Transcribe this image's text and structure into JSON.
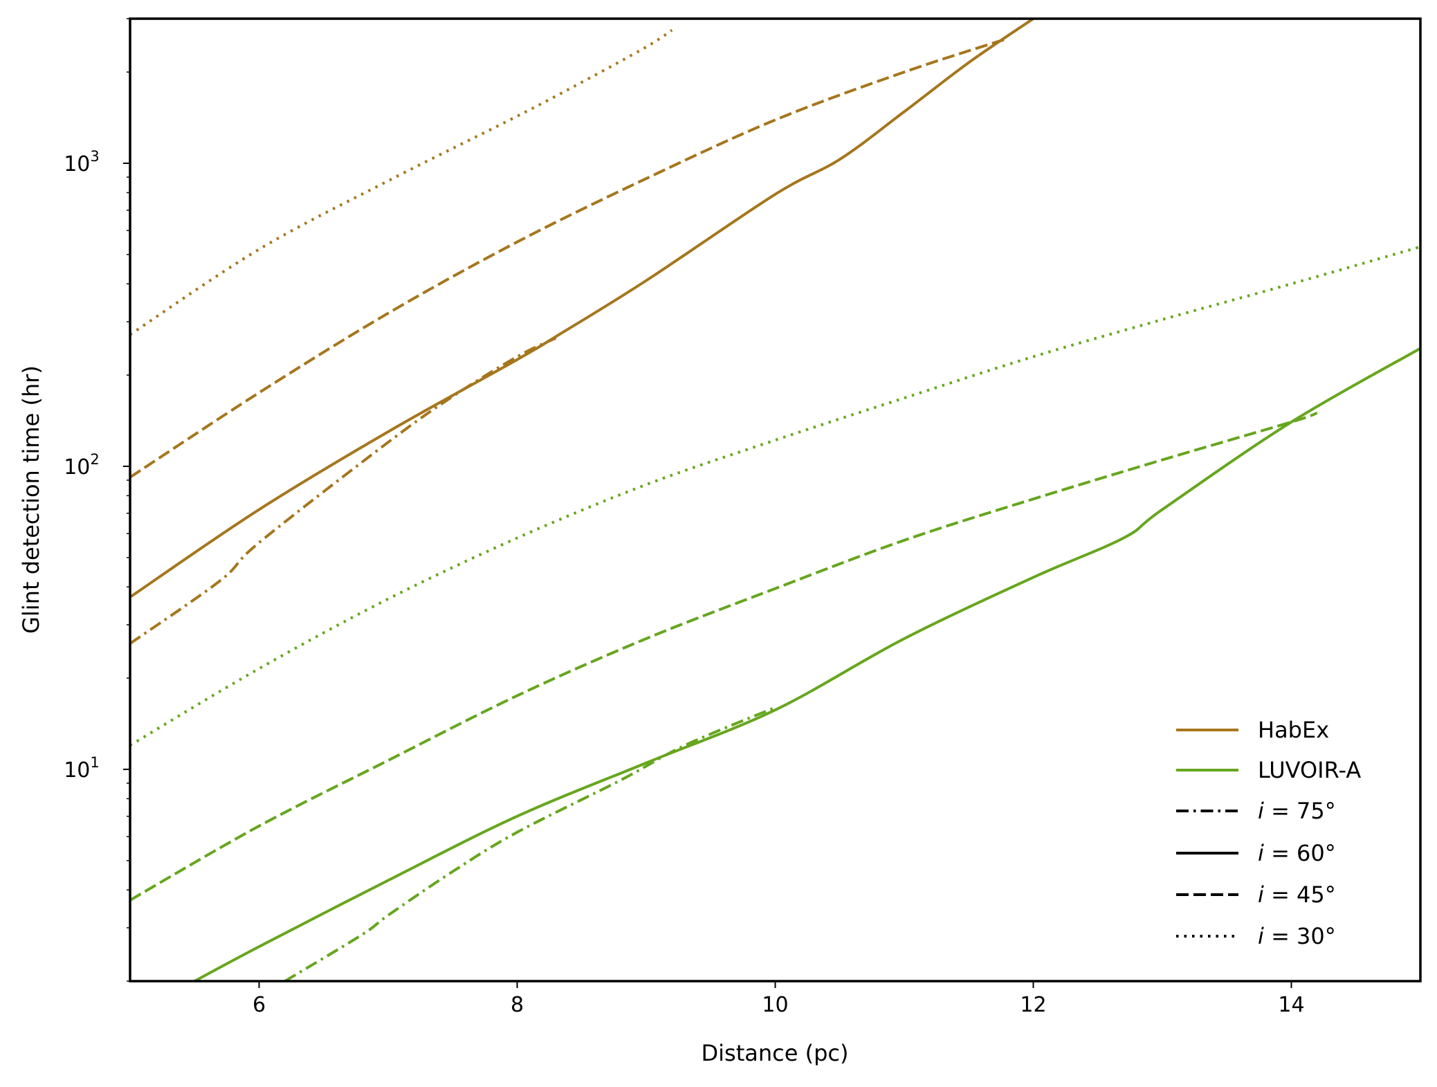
{
  "chart_data": {
    "type": "line",
    "title": "",
    "xlabel": "Distance (pc)",
    "ylabel": "Glint detection time (hr)",
    "xlim": [
      5,
      15
    ],
    "ylim": [
      2,
      3000
    ],
    "yscale": "log",
    "grid": false,
    "legend_placement": "lower-right",
    "x_ticks": [
      6,
      8,
      10,
      12,
      14
    ],
    "x_tick_labels": [
      "6",
      "8",
      "10",
      "12",
      "14"
    ],
    "y_ticks": [
      10,
      100,
      1000
    ],
    "y_tick_labels": [
      {
        "base": "10",
        "exp": "1"
      },
      {
        "base": "10",
        "exp": "2"
      },
      {
        "base": "10",
        "exp": "3"
      }
    ],
    "colors": {
      "HabEx": "#a6761d",
      "LUVOIR-A": "#66a61e"
    },
    "legend": [
      {
        "kind": "color",
        "label": "HabEx",
        "color": "#a6761d"
      },
      {
        "kind": "color",
        "label": "LUVOIR-A",
        "color": "#66a61e"
      },
      {
        "kind": "style",
        "style": "dashdot",
        "prefix": "i",
        "text": " = 75°"
      },
      {
        "kind": "style",
        "style": "solid",
        "prefix": "i",
        "text": " = 60°"
      },
      {
        "kind": "style",
        "style": "dashed",
        "prefix": "i",
        "text": " = 45°"
      },
      {
        "kind": "style",
        "style": "dotted",
        "prefix": "i",
        "text": " = 30°"
      }
    ],
    "series": [
      {
        "telescope": "HabEx",
        "inclination": 30,
        "style": "dotted",
        "x": [
          5.0,
          6.0,
          7.0,
          8.0,
          8.5,
          9.0,
          9.2
        ],
        "y": [
          272,
          520,
          875,
          1430,
          1850,
          2420,
          2750
        ]
      },
      {
        "telescope": "HabEx",
        "inclination": 45,
        "style": "dashed",
        "x": [
          5.0,
          6.0,
          7.0,
          8.0,
          9.0,
          10.0,
          11.0,
          11.8
        ],
        "y": [
          92,
          175,
          320,
          550,
          890,
          1390,
          2000,
          2580
        ]
      },
      {
        "telescope": "HabEx",
        "inclination": 60,
        "style": "solid",
        "x": [
          5.0,
          6.0,
          7.0,
          8.0,
          8.3,
          9.0,
          10.0,
          10.5,
          11.0,
          11.5,
          12.0
        ],
        "y": [
          37,
          72,
          130,
          225,
          268,
          410,
          790,
          1030,
          1480,
          2150,
          3000
        ]
      },
      {
        "telescope": "HabEx",
        "inclination": 75,
        "style": "dashdot",
        "x": [
          5.0,
          5.7,
          6.0,
          7.0,
          7.5,
          8.0,
          8.3
        ],
        "y": [
          26,
          42,
          56,
          120,
          170,
          230,
          265
        ]
      },
      {
        "telescope": "LUVOIR-A",
        "inclination": 30,
        "style": "dotted",
        "x": [
          5.0,
          6.0,
          7.0,
          8.0,
          9.0,
          10.0,
          11.0,
          12.0,
          13.0,
          14.0,
          15.0
        ],
        "y": [
          12,
          21.5,
          36.5,
          58,
          87,
          122,
          168,
          230,
          305,
          400,
          530
        ]
      },
      {
        "telescope": "LUVOIR-A",
        "inclination": 45,
        "style": "dashed",
        "x": [
          5.0,
          6.0,
          7.0,
          8.0,
          9.0,
          10.0,
          11.0,
          12.0,
          13.0,
          14.0,
          14.2
        ],
        "y": [
          3.7,
          6.5,
          10.7,
          17.5,
          27,
          39.5,
          57,
          78,
          105,
          140,
          150
        ]
      },
      {
        "telescope": "LUVOIR-A",
        "inclination": 60,
        "style": "solid",
        "x": [
          5.5,
          6.0,
          7.0,
          8.0,
          9.0,
          10.0,
          11.0,
          12.0,
          12.7,
          13.0,
          14.0,
          15.0
        ],
        "y": [
          2.0,
          2.6,
          4.3,
          7.0,
          10.5,
          15.7,
          27,
          43,
          58,
          72,
          140,
          245
        ]
      },
      {
        "telescope": "LUVOIR-A",
        "inclination": 75,
        "style": "dashdot",
        "x": [
          6.2,
          6.8,
          7.0,
          7.5,
          8.0,
          8.8,
          9.3,
          10.0
        ],
        "y": [
          2.0,
          2.85,
          3.3,
          4.6,
          6.2,
          9.2,
          12.0,
          16.0
        ]
      }
    ]
  }
}
